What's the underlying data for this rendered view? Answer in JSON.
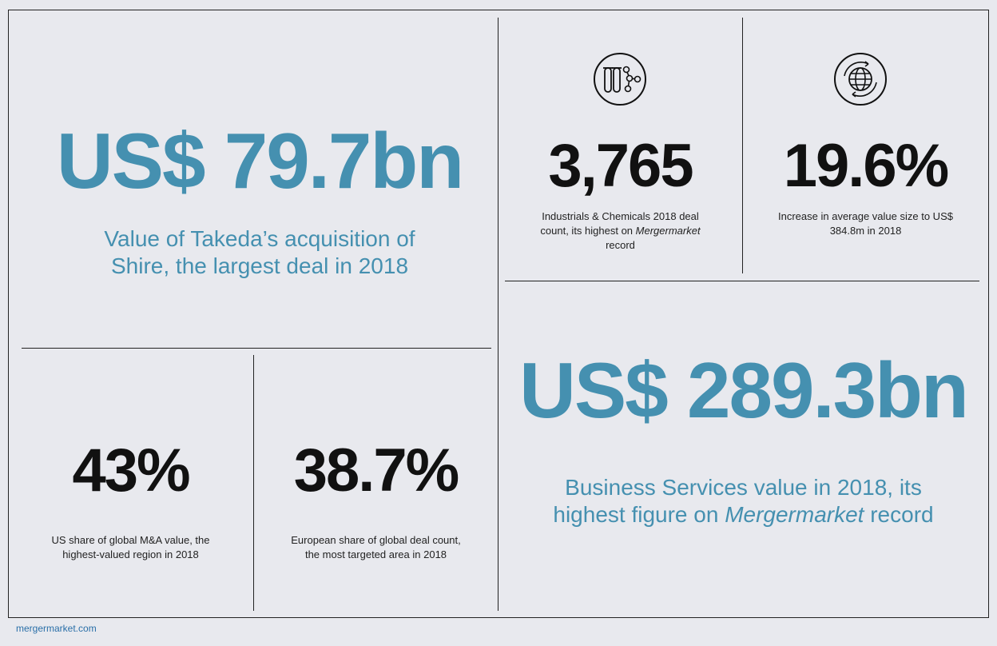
{
  "colors": {
    "accent": "#4590b0",
    "text": "#111111",
    "background": "#e8e9ee"
  },
  "stat_takeda": {
    "value": "US$ 79.7bn",
    "caption_line1": "Value of Takeda’s acquisition of",
    "caption_line2": "Shire, the largest deal in 2018"
  },
  "stat_industrials": {
    "icon": "test-tubes-molecule-icon",
    "value": "3,765",
    "caption_line1": "Industrials & Chemicals 2018 deal",
    "caption_line2_pre": "count, its highest on ",
    "caption_line2_em": "Mergermarket",
    "caption_line3": "record"
  },
  "stat_average": {
    "icon": "globe-icon",
    "value": "19.6%",
    "caption_line1": "Increase in average value size to US$",
    "caption_line2": "384.8m in 2018"
  },
  "stat_us": {
    "value": "43%",
    "caption_line1": "US share of global M&A value, the",
    "caption_line2": "highest-valued region in 2018"
  },
  "stat_europe": {
    "value": "38.7%",
    "caption_line1": "European share of global deal count,",
    "caption_line2": "the most targeted area in 2018"
  },
  "stat_business": {
    "value": "US$ 289.3bn",
    "caption_line1": "Business Services value in 2018, its",
    "caption_line2_pre": "highest figure on ",
    "caption_line2_em": "Mergermarket",
    "caption_line2_post": " record"
  },
  "footer": {
    "site": "mergermarket.com"
  }
}
